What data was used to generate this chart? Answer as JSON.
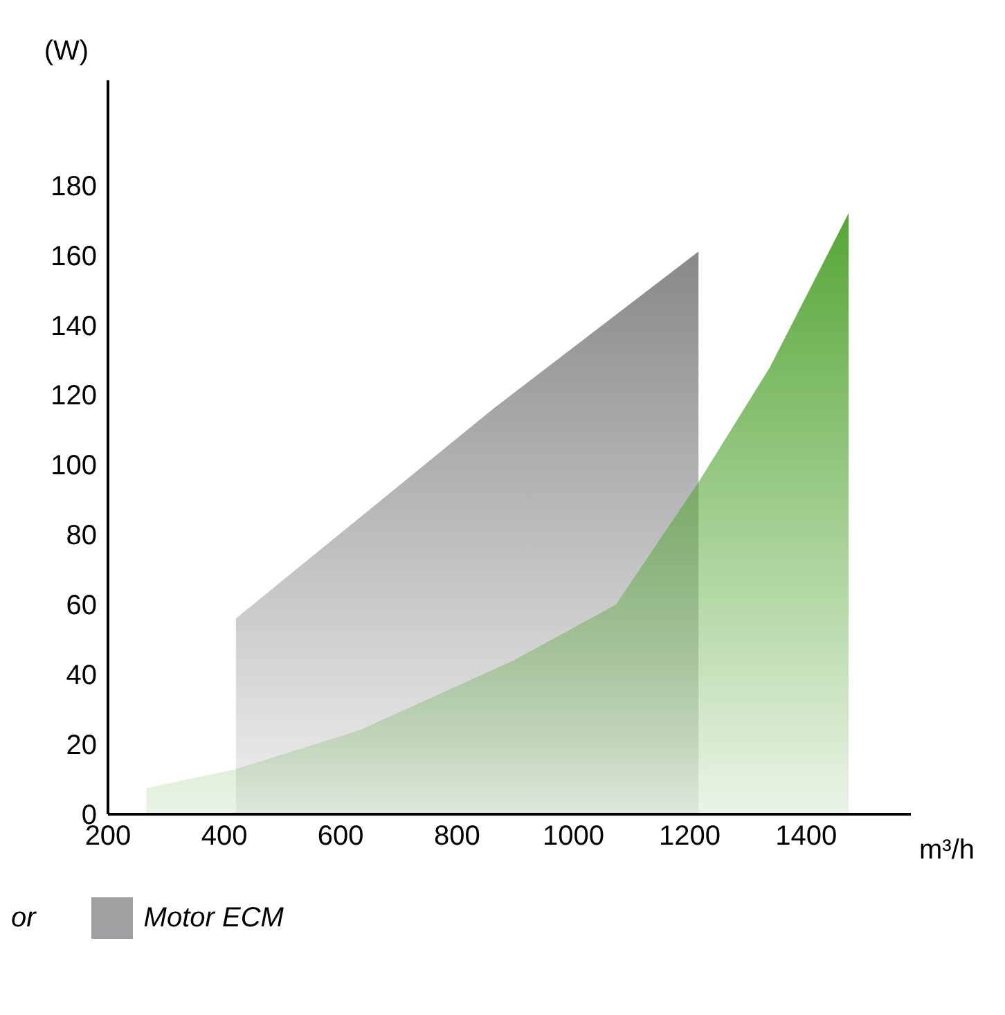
{
  "chart_data": {
    "type": "area",
    "xlabel": "m³/h",
    "ylabel": "(W)",
    "xlim": [
      200,
      1580
    ],
    "xticks": [
      200,
      400,
      600,
      800,
      1000,
      1200,
      1400
    ],
    "ylim": [
      0,
      210
    ],
    "yticks": [
      0,
      20,
      40,
      60,
      80,
      100,
      120,
      140,
      160,
      180
    ],
    "grid": false,
    "legend": "bottom left",
    "series": [
      {
        "name": "Motor ECM",
        "color": "#87888a",
        "x": [
          420,
          420,
          862,
          1215,
          1215
        ],
        "values": [
          0,
          56,
          116,
          161,
          0
        ]
      },
      {
        "color": "#55a635",
        "x": [
          266,
          266,
          417,
          632,
          897,
          1073,
          1215,
          1338,
          1473,
          1473
        ],
        "values": [
          0,
          7.5,
          12.8,
          24,
          44,
          60,
          95,
          128,
          172,
          0
        ]
      }
    ],
    "annotations": [
      "or"
    ]
  }
}
